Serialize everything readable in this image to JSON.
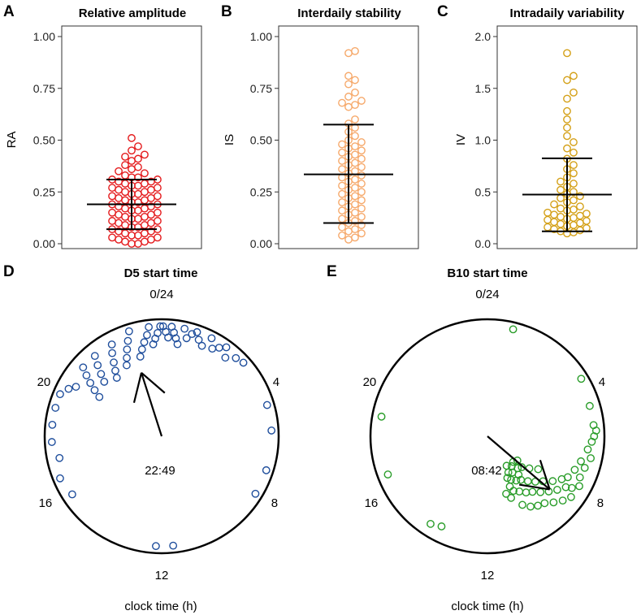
{
  "chart_data": [
    {
      "panel": "A",
      "type": "dot-strip",
      "title": "Relative amplitude",
      "ylabel": "RA",
      "ylim": [
        0,
        1
      ],
      "yticks": [
        "0.00",
        "0.25",
        "0.50",
        "0.75",
        "1.00"
      ],
      "color": "#e41a1c",
      "mean": 0.19,
      "sd_low": 0.07,
      "sd_high": 0.31,
      "values": [
        0.51,
        0.47,
        0.45,
        0.43,
        0.42,
        0.41,
        0.4,
        0.38,
        0.37,
        0.36,
        0.35,
        0.34,
        0.33,
        0.32,
        0.32,
        0.31,
        0.31,
        0.3,
        0.3,
        0.29,
        0.29,
        0.28,
        0.28,
        0.27,
        0.27,
        0.26,
        0.26,
        0.25,
        0.25,
        0.24,
        0.24,
        0.23,
        0.23,
        0.22,
        0.22,
        0.21,
        0.21,
        0.2,
        0.2,
        0.19,
        0.19,
        0.18,
        0.18,
        0.17,
        0.17,
        0.16,
        0.16,
        0.15,
        0.15,
        0.14,
        0.14,
        0.13,
        0.13,
        0.12,
        0.12,
        0.11,
        0.11,
        0.1,
        0.1,
        0.09,
        0.09,
        0.08,
        0.08,
        0.07,
        0.07,
        0.06,
        0.06,
        0.05,
        0.05,
        0.04,
        0.04,
        0.03,
        0.03,
        0.02,
        0.02,
        0.01,
        0.01,
        0.0,
        0.0
      ]
    },
    {
      "panel": "B",
      "type": "dot-strip",
      "title": "Interdaily stability",
      "ylabel": "IS",
      "ylim": [
        0,
        1
      ],
      "yticks": [
        "0.00",
        "0.25",
        "0.50",
        "0.75",
        "1.00"
      ],
      "color": "#f6a96b",
      "mean": 0.335,
      "sd_low": 0.1,
      "sd_high": 0.575,
      "values": [
        0.93,
        0.92,
        0.81,
        0.79,
        0.77,
        0.73,
        0.71,
        0.69,
        0.68,
        0.67,
        0.66,
        0.6,
        0.58,
        0.56,
        0.54,
        0.52,
        0.5,
        0.49,
        0.48,
        0.47,
        0.46,
        0.45,
        0.44,
        0.43,
        0.42,
        0.41,
        0.4,
        0.39,
        0.38,
        0.37,
        0.36,
        0.35,
        0.34,
        0.33,
        0.32,
        0.31,
        0.3,
        0.29,
        0.28,
        0.27,
        0.26,
        0.25,
        0.24,
        0.23,
        0.22,
        0.21,
        0.2,
        0.19,
        0.18,
        0.17,
        0.16,
        0.15,
        0.14,
        0.13,
        0.12,
        0.11,
        0.1,
        0.09,
        0.08,
        0.07,
        0.06,
        0.05,
        0.04,
        0.03,
        0.02
      ]
    },
    {
      "panel": "C",
      "type": "dot-strip",
      "title": "Intradaily variability",
      "ylabel": "IV",
      "ylim": [
        0,
        2
      ],
      "yticks": [
        "0.0",
        "0.5",
        "1.0",
        "1.5",
        "2.0"
      ],
      "color": "#d4a017",
      "mean": 0.475,
      "sd_low": 0.12,
      "sd_high": 0.825,
      "values": [
        1.84,
        1.62,
        1.58,
        1.46,
        1.4,
        1.28,
        1.2,
        1.12,
        1.04,
        0.98,
        0.92,
        0.88,
        0.82,
        0.76,
        0.72,
        0.68,
        0.64,
        0.6,
        0.58,
        0.55,
        0.52,
        0.5,
        0.48,
        0.46,
        0.44,
        0.42,
        0.4,
        0.38,
        0.36,
        0.34,
        0.33,
        0.32,
        0.3,
        0.29,
        0.28,
        0.27,
        0.26,
        0.25,
        0.24,
        0.23,
        0.22,
        0.21,
        0.2,
        0.19,
        0.18,
        0.17,
        0.16,
        0.15,
        0.14,
        0.13,
        0.12,
        0.11,
        0.1
      ]
    },
    {
      "panel": "D",
      "type": "circular",
      "title": "D5 start time",
      "xlabel": "clock time (h)",
      "color": "#1f4e9c",
      "hour_labels": [
        "0/24",
        "4",
        "8",
        "12",
        "16",
        "20"
      ],
      "mean_time": "22:49",
      "mean_angle_h": 22.82,
      "mean_length": 0.57,
      "times_h": [
        0.05,
        0.15,
        0.25,
        0.35,
        0.45,
        0.55,
        0.65,
        0.8,
        0.95,
        1.1,
        1.25,
        1.4,
        1.6,
        1.8,
        2.0,
        2.2,
        2.4,
        2.6,
        2.9,
        3.2,
        23.95,
        23.85,
        23.75,
        23.65,
        23.55,
        23.45,
        23.3,
        23.15,
        23.0,
        22.85,
        22.7,
        22.55,
        22.4,
        22.25,
        22.1,
        21.95,
        21.8,
        21.65,
        21.5,
        21.35,
        21.2,
        21.05,
        20.9,
        20.75,
        20.6,
        20.45,
        20.3,
        20.15,
        20.0,
        19.8,
        19.5,
        19.0,
        18.4,
        17.8,
        17.2,
        16.5,
        15.8,
        12.2,
        11.6,
        8.1,
        7.2,
        5.8,
        4.9
      ],
      "radii": [
        1,
        0.95,
        0.9,
        1,
        0.95,
        0.9,
        0.85,
        1,
        0.92,
        0.97,
        1,
        0.94,
        0.9,
        1,
        0.92,
        0.96,
        1,
        0.92,
        0.98,
        1,
        1,
        0.94,
        0.89,
        0.84,
        1,
        0.93,
        0.87,
        0.81,
        0.75,
        1,
        0.92,
        0.85,
        0.78,
        0.72,
        0.95,
        0.88,
        0.8,
        0.73,
        0.67,
        0.95,
        0.87,
        0.79,
        0.72,
        0.95,
        0.88,
        0.81,
        0.74,
        0.67,
        0.9,
        0.95,
        1,
        1,
        1,
        1,
        0.95,
        1,
        0.97,
        1,
        1,
        1,
        1,
        1,
        1
      ]
    },
    {
      "panel": "E",
      "type": "circular",
      "title": "B10 start time",
      "xlabel": "clock time (h)",
      "color": "#2a9d2a",
      "hour_labels": [
        "0/24",
        "4",
        "8",
        "12",
        "16",
        "20"
      ],
      "mean_time": "08:42",
      "mean_angle_h": 8.7,
      "mean_length": 0.7,
      "times_h": [
        0.9,
        3.9,
        4.9,
        5.6,
        5.8,
        6.0,
        6.2,
        6.5,
        6.8,
        7.0,
        7.2,
        7.4,
        7.6,
        7.8,
        7.9,
        8.0,
        8.1,
        8.2,
        8.3,
        8.4,
        8.5,
        8.6,
        8.7,
        8.8,
        8.9,
        9.0,
        9.1,
        9.2,
        9.3,
        9.4,
        9.5,
        9.6,
        9.7,
        9.8,
        9.9,
        10.0,
        10.1,
        10.2,
        10.3,
        10.4,
        10.6,
        10.8,
        8.2,
        8.5,
        8.8,
        9.1,
        9.4,
        9.7,
        10.0,
        10.3,
        8.6,
        9.0,
        9.4,
        9.8,
        13.8,
        14.2,
        16.6,
        18.7
      ],
      "radii": [
        1,
        1,
        0.97,
        0.97,
        0.99,
        0.97,
        0.95,
        0.92,
        0.96,
        0.88,
        0.93,
        0.85,
        0.92,
        0.82,
        0.95,
        0.78,
        0.9,
        0.85,
        0.72,
        0.94,
        0.8,
        0.65,
        0.9,
        0.75,
        0.6,
        0.85,
        0.7,
        0.55,
        0.8,
        0.65,
        0.5,
        0.78,
        0.62,
        0.48,
        0.75,
        0.58,
        0.45,
        0.7,
        0.55,
        0.5,
        0.6,
        0.55,
        0.55,
        0.48,
        0.42,
        0.4,
        0.45,
        0.4,
        0.38,
        0.42,
        0.35,
        0.33,
        0.35,
        0.32,
        0.92,
        0.95,
        0.97,
        0.98
      ]
    }
  ]
}
